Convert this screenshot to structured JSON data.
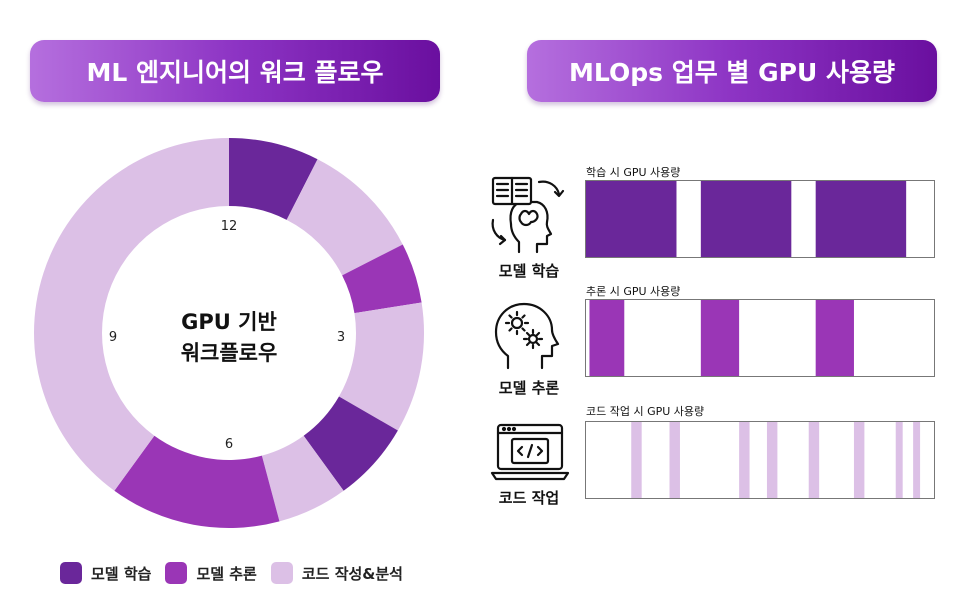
{
  "titles": {
    "left": "ML 엔지니어의 워크 플로우",
    "right": "MLOps 업무 별 GPU 사용량"
  },
  "colors": {
    "training": "#6a279a",
    "inference": "#9a36b6",
    "coding": "#dcc0e6"
  },
  "chart_data": [
    {
      "type": "pie",
      "variant": "donut",
      "title": "GPU 기반 워크플로우",
      "center_label": [
        "GPU 기반",
        "워크플로우"
      ],
      "clock_labels": [
        "12",
        "3",
        "6",
        "9"
      ],
      "clock_scale": 12,
      "categories": [
        "모델 학습",
        "코드 작성&분석",
        "모델 추론",
        "코드 작성&분석",
        "모델 학습",
        "코드 작성&분석",
        "모델 추론",
        "코드 작성&분석"
      ],
      "values": [
        0.9,
        1.2,
        0.6,
        1.3,
        0.8,
        0.7,
        1.7,
        4.8
      ],
      "series_kind": [
        "training",
        "coding",
        "inference",
        "coding",
        "training",
        "coding",
        "inference",
        "coding"
      ],
      "legend": [
        "모델 학습",
        "모델 추론",
        "코드 작성&분석"
      ]
    },
    {
      "type": "bar",
      "variant": "timeline",
      "title": "학습 시 GPU 사용량",
      "task": "모델 학습",
      "color_key": "training",
      "x_range": [
        0,
        100
      ],
      "intervals": [
        [
          0,
          26
        ],
        [
          33,
          59
        ],
        [
          66,
          92
        ]
      ]
    },
    {
      "type": "bar",
      "variant": "timeline",
      "title": "추론 시 GPU 사용량",
      "task": "모델 추론",
      "color_key": "inference",
      "x_range": [
        0,
        100
      ],
      "intervals": [
        [
          1,
          11
        ],
        [
          33,
          44
        ],
        [
          66,
          77
        ]
      ]
    },
    {
      "type": "bar",
      "variant": "timeline",
      "title": "코드 작업 시 GPU 사용량",
      "task": "코드 작업",
      "color_key": "coding",
      "x_range": [
        0,
        100
      ],
      "intervals": [
        [
          13,
          16
        ],
        [
          24,
          27
        ],
        [
          44,
          47
        ],
        [
          52,
          55
        ],
        [
          64,
          67
        ],
        [
          77,
          80
        ],
        [
          89,
          91
        ],
        [
          94,
          96
        ]
      ]
    }
  ]
}
